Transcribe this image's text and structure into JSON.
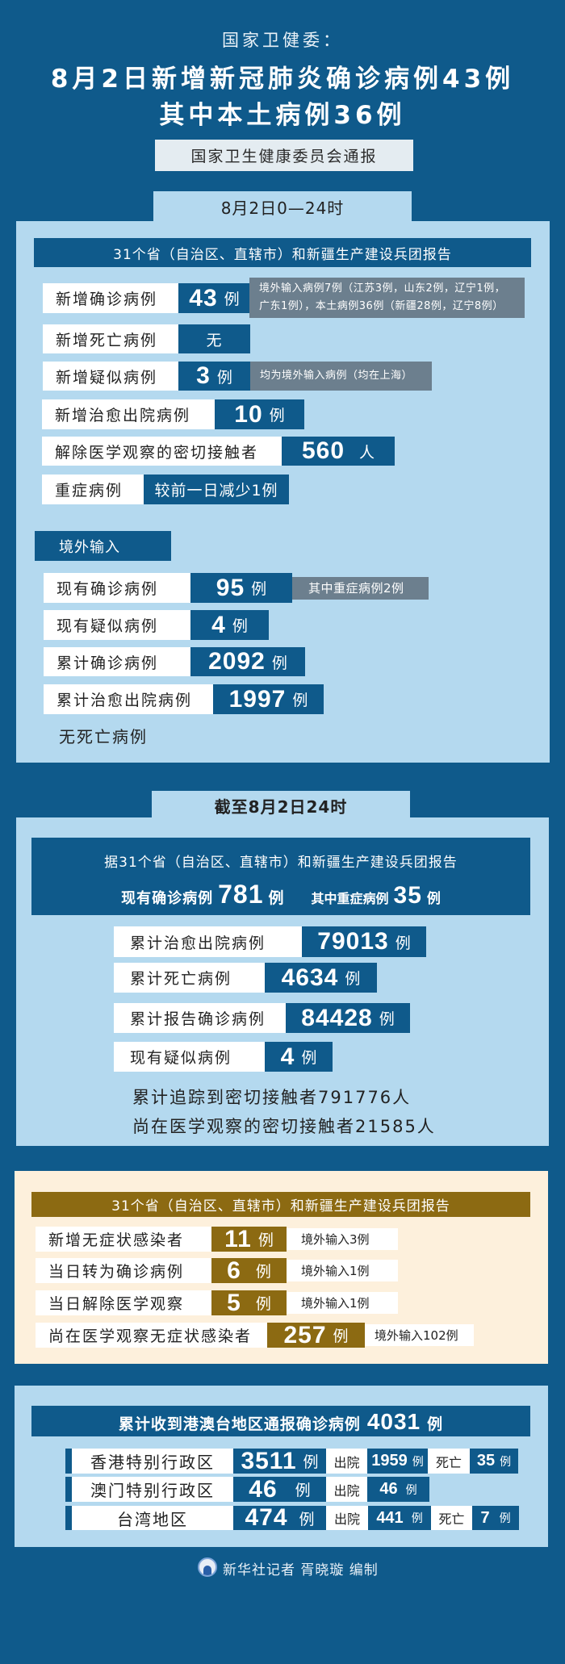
{
  "header": {
    "kicker": "国家卫健委：",
    "title_line1": "8月2日新增新冠肺炎确诊病例43例",
    "title_line2": "其中本土病例36例",
    "source": "国家卫生健康委员会通报"
  },
  "daily": {
    "tab": "8月2日0—24时",
    "banner": "31个省（自治区、直辖市）和新疆生产建设兵团报告",
    "rows": [
      {
        "label": "新增确诊病例",
        "value": "43",
        "unit": "例",
        "note_line1": "境外输入病例7例（江苏3例，山东2例，辽宁1例，",
        "note_line2": "广东1例），本土病例36例（新疆28例，辽宁8例）"
      },
      {
        "label": "新增死亡病例",
        "value": "无"
      },
      {
        "label": "新增疑似病例",
        "value": "3",
        "unit": "例",
        "note": "均为境外输入病例（均在上海）"
      },
      {
        "label": "新增治愈出院病例",
        "value": "10",
        "unit": "例"
      },
      {
        "label": "解除医学观察的密切接触者",
        "value": "560",
        "unit": "人"
      },
      {
        "label": "重症病例",
        "value": "较前一日减少1例"
      }
    ],
    "imported": {
      "title": "境外输入",
      "rows": [
        {
          "label": "现有确诊病例",
          "value": "95",
          "unit": "例",
          "note": "其中重症病例2例"
        },
        {
          "label": "现有疑似病例",
          "value": "4",
          "unit": "例"
        },
        {
          "label": "累计确诊病例",
          "value": "2092",
          "unit": "例"
        },
        {
          "label": "累计治愈出院病例",
          "value": "1997",
          "unit": "例"
        }
      ],
      "footnote": "无死亡病例"
    }
  },
  "cumulative": {
    "tab": "截至8月2日24时",
    "banner_line1": "据31个省（自治区、直辖市）和新疆生产建设兵团报告",
    "current_label": "现有确诊病例",
    "current_value": "781",
    "current_unit": "例",
    "severe_label": "其中重症病例",
    "severe_value": "35",
    "severe_unit": "例",
    "rows": [
      {
        "label": "累计治愈出院病例",
        "value": "79013",
        "unit": "例"
      },
      {
        "label": "累计死亡病例",
        "value": "4634",
        "unit": "例"
      },
      {
        "label": "累计报告确诊病例",
        "value": "84428",
        "unit": "例"
      },
      {
        "label": "现有疑似病例",
        "value": "4",
        "unit": "例"
      }
    ],
    "line1": "累计追踪到密切接触者791776人",
    "line2": "尚在医学观察的密切接触者21585人"
  },
  "asymptomatic": {
    "banner": "31个省（自治区、直辖市）和新疆生产建设兵团报告",
    "rows": [
      {
        "label": "新增无症状感染者",
        "value": "11",
        "unit": "例",
        "note": "境外输入3例"
      },
      {
        "label": "当日转为确诊病例",
        "value": "6",
        "unit": "例",
        "note": "境外输入1例"
      },
      {
        "label": "当日解除医学观察",
        "value": "5",
        "unit": "例",
        "note": "境外输入1例"
      },
      {
        "label": "尚在医学观察无症状感染者",
        "value": "257",
        "unit": "例",
        "note": "境外输入102例"
      }
    ]
  },
  "hkmt": {
    "banner_label": "累计收到港澳台地区通报确诊病例",
    "banner_value": "4031",
    "banner_unit": "例",
    "discharged_label": "出院",
    "death_label": "死亡",
    "rows": [
      {
        "region": "香港特别行政区",
        "value": "3511",
        "unit": "例",
        "discharged": "1959",
        "discharged_unit": "例",
        "deaths": "35",
        "deaths_unit": "例"
      },
      {
        "region": "澳门特别行政区",
        "value": "46",
        "unit": "例",
        "discharged": "46",
        "discharged_unit": "例"
      },
      {
        "region": "台湾地区",
        "value": "474",
        "unit": "例",
        "discharged": "441",
        "discharged_unit": "例",
        "deaths": "7",
        "deaths_unit": "例"
      }
    ]
  },
  "footer": {
    "credit": "新华社记者 胥晓璇 编制",
    "logo": "xinhua-logo"
  },
  "colors": {
    "background": "#0f5a8b",
    "panel": "#b4d9ef",
    "note": "#6c7f8e",
    "gold": "#8c6a12",
    "cream": "#fdf0dc"
  }
}
